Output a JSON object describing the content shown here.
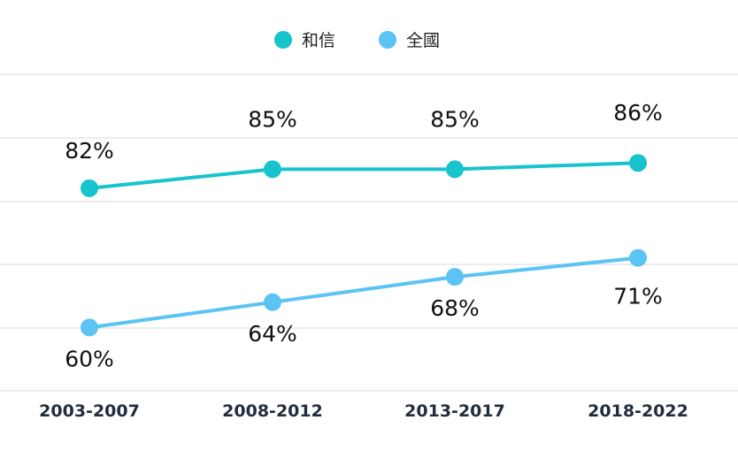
{
  "chart_data": {
    "type": "line",
    "categories": [
      "2003-2007",
      "2008-2012",
      "2013-2017",
      "2018-2022"
    ],
    "series": [
      {
        "name": "和信",
        "values": [
          82,
          85,
          85,
          86
        ],
        "labels": [
          "82%",
          "85%",
          "85%",
          "86%"
        ],
        "color": "#17c3cc"
      },
      {
        "name": "全國",
        "values": [
          60,
          64,
          68,
          71
        ],
        "labels": [
          "60%",
          "64%",
          "68%",
          "71%"
        ],
        "color": "#5bc4f5"
      }
    ],
    "ylim": [
      50,
      100
    ],
    "grid": true,
    "legend_position": "top-center",
    "unit": "%"
  }
}
